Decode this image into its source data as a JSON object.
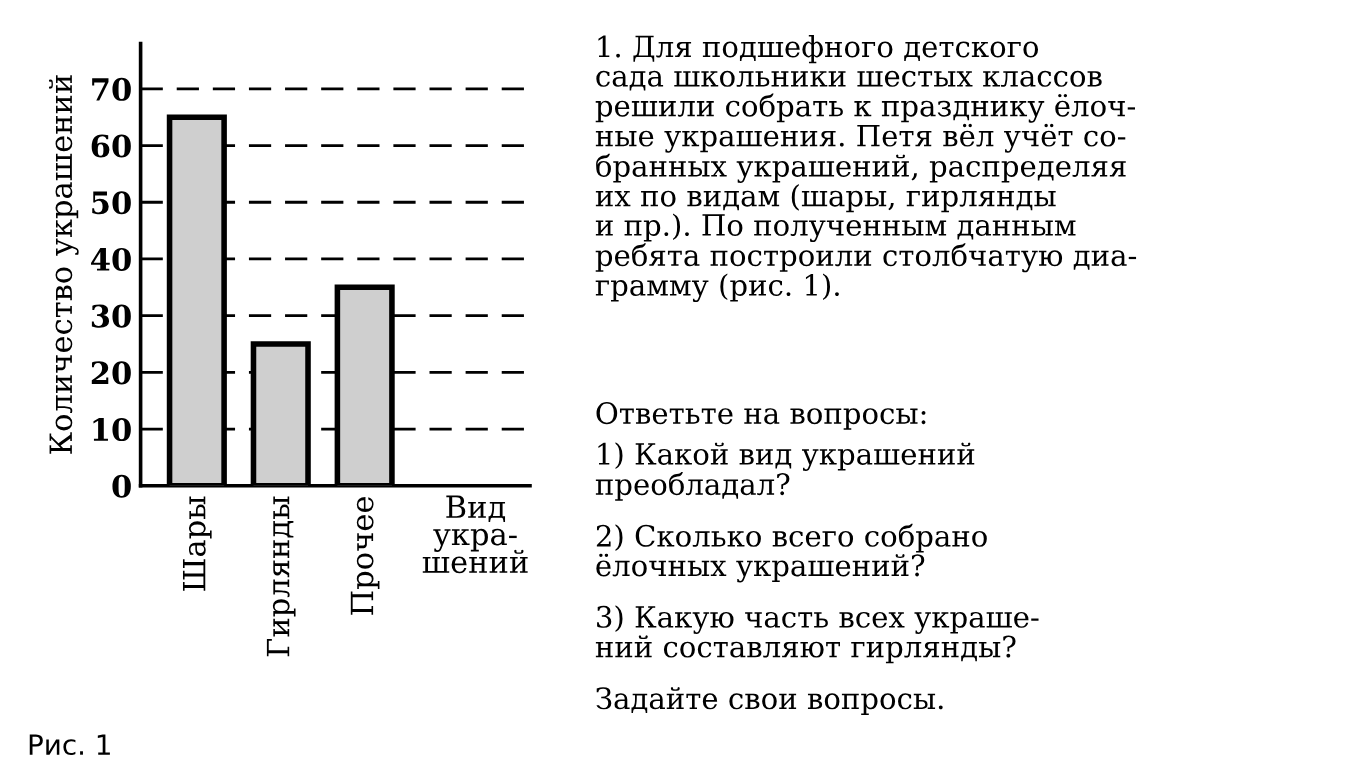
{
  "chart_data": {
    "type": "bar",
    "categories": [
      "Шары",
      "Гирлянды",
      "Прочее"
    ],
    "values": [
      65,
      25,
      35
    ],
    "color": "#cfcfcf",
    "ylim": [
      0,
      78
    ],
    "yticks": [
      0,
      10,
      20,
      30,
      40,
      50,
      60,
      70
    ],
    "grid": "y",
    "line_style": "dashed",
    "xlabel": "Вид\nукра-\nшений",
    "ylabel": "Количество украшений",
    "annotations": [
      "Рис. 1",
      "1. Для подшефного детского\nсада школьники шестых классов\nрешили собрать к празднику ёлоч-\nные украшения. Петя вёл учёт со-\nбранных украшений, распределяя\nих по видам (шары, гирлянды\nи пр.). По полученным данным\nребята построили столбчатую диа-\nграмму (рис. 1).",
      "Ответьте на вопросы:",
      "1) Какой вид украшений\nпреобладал?",
      "2) Сколько всего собрано\nёлочных украшений?",
      "3) Какую часть всех украше-\nний составляют гирлянды?",
      "Задайте свои вопросы."
    ]
  }
}
